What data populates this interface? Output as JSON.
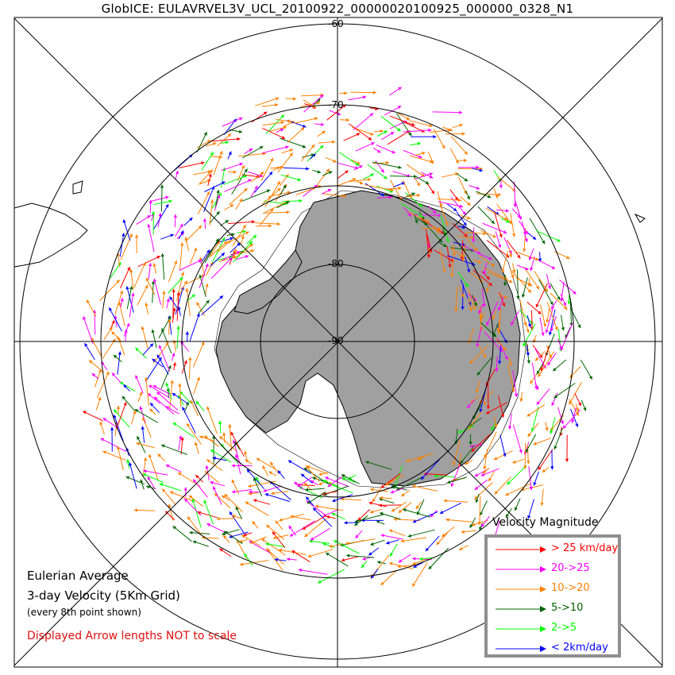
{
  "title": "GlobICE: EULAVRVEL3V_UCL_20100922_00000020100925_000000_0328_N1",
  "latitude_labels": [
    "-60",
    "-70",
    "-80",
    "-90"
  ],
  "legend": {
    "title": "Velocity Magnitude",
    "items": [
      {
        "label": "> 25 km/day",
        "color": "#ff0000"
      },
      {
        "label": "20->25",
        "color": "#ff00ff"
      },
      {
        "label": "10->20",
        "color": "#ff8000"
      },
      {
        "label": "5->10",
        "color": "#006400"
      },
      {
        "label": "2->5",
        "color": "#00ff00"
      },
      {
        "label": "< 2km/day",
        "color": "#0000ff"
      }
    ]
  },
  "notes": {
    "line1": "Eulerian Average",
    "line2": "3-day Velocity (5Km Grid)",
    "line3": "(every 8th point shown)",
    "warning": "Displayed Arrow lengths NOT to scale"
  },
  "colors": {
    "land": "#a0a0a0",
    "ocean": "#ffffff",
    "grid": "#000000",
    "warning": "#e01010"
  }
}
